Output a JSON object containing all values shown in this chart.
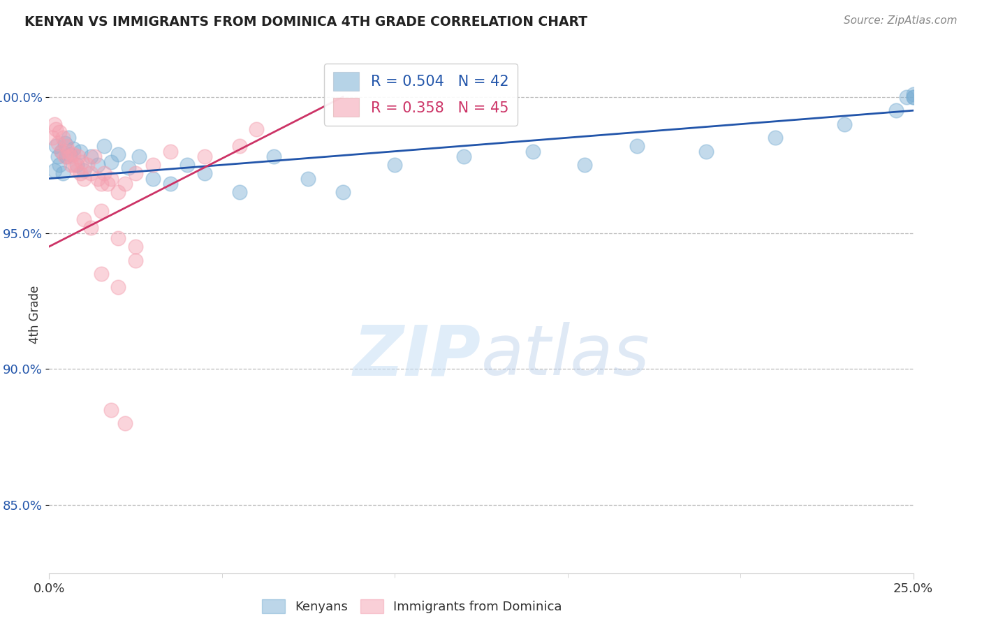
{
  "title": "KENYAN VS IMMIGRANTS FROM DOMINICA 4TH GRADE CORRELATION CHART",
  "source_text": "Source: ZipAtlas.com",
  "ylabel": "4th Grade",
  "xlim": [
    0.0,
    25.0
  ],
  "ylim": [
    82.5,
    101.5
  ],
  "xticklabels": [
    "0.0%",
    "25.0%"
  ],
  "yticklabels": [
    "85.0%",
    "90.0%",
    "95.0%",
    "100.0%"
  ],
  "ytick_values": [
    85.0,
    90.0,
    95.0,
    100.0
  ],
  "xtick_values": [
    0.0,
    25.0
  ],
  "blue_R": 0.504,
  "blue_N": 42,
  "pink_R": 0.358,
  "pink_N": 45,
  "blue_color": "#7bafd4",
  "pink_color": "#f4a0b0",
  "trendline_blue": "#2255aa",
  "trendline_pink": "#cc3366",
  "legend_label_blue": "Kenyans",
  "legend_label_pink": "Immigrants from Dominica",
  "watermark_zip": "ZIP",
  "watermark_atlas": "atlas",
  "blue_line_x": [
    0.0,
    25.0
  ],
  "blue_line_y": [
    97.0,
    99.5
  ],
  "pink_line_x": [
    0.0,
    8.5
  ],
  "pink_line_y": [
    94.5,
    100.0
  ],
  "blue_points_x": [
    0.15,
    0.2,
    0.25,
    0.3,
    0.35,
    0.4,
    0.45,
    0.5,
    0.55,
    0.6,
    0.7,
    0.8,
    0.9,
    1.0,
    1.2,
    1.4,
    1.6,
    1.8,
    2.0,
    2.3,
    2.6,
    3.0,
    3.5,
    4.0,
    4.5,
    5.5,
    6.5,
    7.5,
    8.5,
    10.0,
    12.0,
    14.0,
    15.5,
    17.0,
    19.0,
    21.0,
    23.0,
    24.5,
    24.8,
    25.0,
    25.0,
    25.0
  ],
  "blue_points_y": [
    97.3,
    98.2,
    97.8,
    97.5,
    98.0,
    97.2,
    98.3,
    97.8,
    98.5,
    97.9,
    98.1,
    97.5,
    98.0,
    97.3,
    97.8,
    97.5,
    98.2,
    97.6,
    97.9,
    97.4,
    97.8,
    97.0,
    96.8,
    97.5,
    97.2,
    96.5,
    97.8,
    97.0,
    96.5,
    97.5,
    97.8,
    98.0,
    97.5,
    98.2,
    98.0,
    98.5,
    99.0,
    99.5,
    100.0,
    100.0,
    100.0,
    100.1
  ],
  "pink_points_x": [
    0.1,
    0.15,
    0.2,
    0.25,
    0.3,
    0.35,
    0.4,
    0.45,
    0.5,
    0.55,
    0.6,
    0.65,
    0.7,
    0.75,
    0.8,
    0.85,
    0.9,
    0.95,
    1.0,
    1.1,
    1.2,
    1.3,
    1.4,
    1.5,
    1.6,
    1.7,
    1.8,
    2.0,
    2.2,
    2.5,
    3.0,
    3.5,
    4.5,
    5.5,
    6.0,
    1.0,
    1.2,
    1.5,
    2.0,
    2.5,
    1.5,
    2.0,
    2.5,
    1.8,
    2.2
  ],
  "pink_points_y": [
    98.5,
    99.0,
    98.8,
    98.3,
    98.7,
    98.0,
    98.5,
    97.8,
    98.2,
    98.0,
    97.8,
    97.5,
    97.9,
    97.5,
    97.3,
    97.8,
    97.2,
    97.6,
    97.0,
    97.5,
    97.2,
    97.8,
    97.0,
    96.8,
    97.2,
    96.8,
    97.0,
    96.5,
    96.8,
    97.2,
    97.5,
    98.0,
    97.8,
    98.2,
    98.8,
    95.5,
    95.2,
    95.8,
    94.8,
    94.5,
    93.5,
    93.0,
    94.0,
    88.5,
    88.0
  ]
}
